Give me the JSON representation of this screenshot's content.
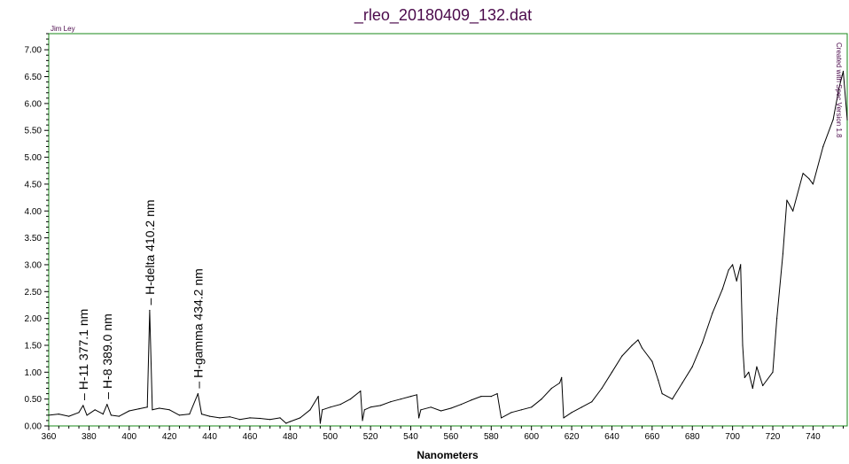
{
  "chart_data": {
    "type": "line",
    "title": "_rleo_20180409_132.dat",
    "xlabel": "Nanometers",
    "ylabel": "",
    "corner_label": "Jim Ley",
    "side_label": "Created with Spec Version 1.8",
    "xlim": [
      360,
      757
    ],
    "ylim": [
      0,
      7.3
    ],
    "x_ticks": [
      360,
      380,
      400,
      420,
      440,
      460,
      480,
      500,
      520,
      540,
      560,
      580,
      600,
      620,
      640,
      660,
      680,
      700,
      720,
      740
    ],
    "y_ticks": [
      "0.00",
      "0.50",
      "1.00",
      "1.50",
      "2.00",
      "2.50",
      "3.00",
      "3.50",
      "4.00",
      "4.50",
      "5.00",
      "5.50",
      "6.00",
      "6.50",
      "7.00"
    ],
    "annotations": [
      {
        "x": 377.1,
        "text": "H-11 377.1 nm"
      },
      {
        "x": 389.0,
        "text": "H-8 389.0 nm"
      },
      {
        "x": 410.2,
        "text": "H-delta 410.2 nm"
      },
      {
        "x": 434.2,
        "text": "H-gamma 434.2 nm"
      }
    ],
    "series": [
      {
        "color": "#000000",
        "x": [
          360,
          365,
          370,
          375,
          377.1,
          379,
          383,
          387,
          389.0,
          391,
          395,
          400,
          405,
          409,
          410.2,
          411.5,
          415,
          420,
          425,
          430,
          434.2,
          436,
          440,
          445,
          450,
          455,
          460,
          465,
          470,
          475,
          478,
          480,
          485,
          490,
          494,
          495,
          496,
          500,
          505,
          510,
          515,
          516,
          517,
          520,
          525,
          530,
          535,
          540,
          543,
          544,
          545,
          550,
          555,
          560,
          565,
          570,
          575,
          580,
          583,
          585,
          590,
          595,
          600,
          605,
          610,
          614,
          615,
          616,
          620,
          625,
          630,
          635,
          640,
          645,
          650,
          653,
          655,
          660,
          663,
          665,
          670,
          675,
          680,
          685,
          690,
          695,
          698,
          700,
          702,
          704,
          705,
          706,
          708,
          710,
          712,
          715,
          720,
          722,
          725,
          727,
          730,
          735,
          738,
          740,
          745,
          750,
          753,
          755,
          757
        ],
        "y": [
          0.2,
          0.22,
          0.18,
          0.25,
          0.38,
          0.2,
          0.3,
          0.22,
          0.4,
          0.2,
          0.18,
          0.28,
          0.32,
          0.35,
          2.15,
          0.3,
          0.33,
          0.3,
          0.2,
          0.22,
          0.6,
          0.22,
          0.18,
          0.15,
          0.17,
          0.12,
          0.15,
          0.14,
          0.12,
          0.15,
          0.05,
          0.08,
          0.15,
          0.3,
          0.55,
          0.05,
          0.3,
          0.35,
          0.4,
          0.5,
          0.65,
          0.1,
          0.3,
          0.35,
          0.38,
          0.45,
          0.5,
          0.55,
          0.58,
          0.15,
          0.3,
          0.35,
          0.28,
          0.33,
          0.4,
          0.48,
          0.55,
          0.55,
          0.6,
          0.15,
          0.25,
          0.3,
          0.35,
          0.5,
          0.7,
          0.8,
          0.9,
          0.15,
          0.25,
          0.35,
          0.45,
          0.7,
          1.0,
          1.3,
          1.5,
          1.6,
          1.45,
          1.2,
          0.85,
          0.6,
          0.5,
          0.8,
          1.1,
          1.55,
          2.1,
          2.55,
          2.9,
          3.0,
          2.7,
          3.0,
          1.5,
          0.9,
          1.0,
          0.7,
          1.1,
          0.75,
          1.0,
          2.0,
          3.2,
          4.2,
          4.0,
          4.7,
          4.6,
          4.5,
          5.2,
          5.7,
          6.3,
          6.6,
          5.7
        ]
      }
    ]
  }
}
